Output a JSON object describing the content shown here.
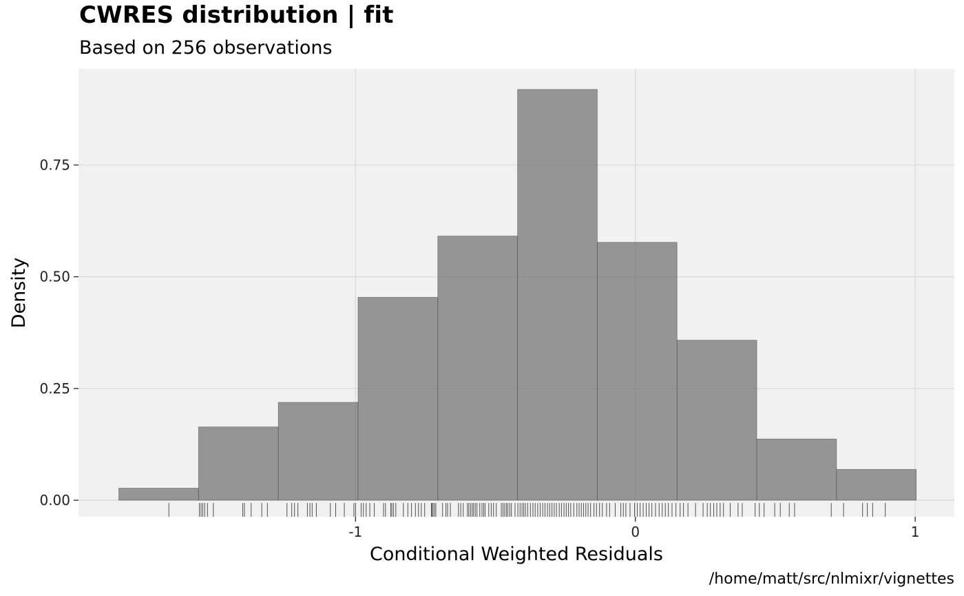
{
  "title": "CWRES distribution | fit",
  "subtitle": "Based on 256 observations",
  "caption": "/home/matt/src/nlmixr/vignettes",
  "chart_data": {
    "type": "bar",
    "subtype": "histogram",
    "xlabel": "Conditional Weighted Residuals",
    "ylabel": "Density",
    "xlim": [
      -1.99,
      1.14
    ],
    "ylim": [
      -0.037,
      0.965
    ],
    "x_ticks": [
      {
        "value": -1,
        "label": "-1"
      },
      {
        "value": 0,
        "label": "0"
      },
      {
        "value": 1,
        "label": "1"
      }
    ],
    "y_ticks": [
      {
        "value": 0.0,
        "label": "0.00"
      },
      {
        "value": 0.25,
        "label": "0.25"
      },
      {
        "value": 0.5,
        "label": "0.50"
      },
      {
        "value": 0.75,
        "label": "0.75"
      }
    ],
    "bins": [
      {
        "x0": -1.846,
        "x1": -1.561,
        "density": 0.027
      },
      {
        "x0": -1.561,
        "x1": -1.276,
        "density": 0.164
      },
      {
        "x0": -1.276,
        "x1": -0.991,
        "density": 0.219
      },
      {
        "x0": -0.991,
        "x1": -0.706,
        "density": 0.454
      },
      {
        "x0": -0.706,
        "x1": -0.421,
        "density": 0.591
      },
      {
        "x0": -0.421,
        "x1": -0.136,
        "density": 0.919
      },
      {
        "x0": -0.136,
        "x1": 0.149,
        "density": 0.577
      },
      {
        "x0": 0.149,
        "x1": 0.434,
        "density": 0.358
      },
      {
        "x0": 0.434,
        "x1": 0.719,
        "density": 0.137
      },
      {
        "x0": 0.719,
        "x1": 1.004,
        "density": 0.069
      }
    ],
    "rug": [
      -1.667,
      -1.558,
      -1.552,
      -1.546,
      -1.539,
      -1.529,
      -1.508,
      -1.403,
      -1.397,
      -1.373,
      -1.335,
      -1.315,
      -1.245,
      -1.228,
      -1.218,
      -1.206,
      -1.172,
      -1.163,
      -1.155,
      -1.14,
      -1.09,
      -1.071,
      -1.04,
      -1.006,
      -1.0,
      -0.98,
      -0.972,
      -0.962,
      -0.949,
      -0.933,
      -0.9,
      -0.893,
      -0.874,
      -0.87,
      -0.864,
      -0.856,
      -0.829,
      -0.813,
      -0.8,
      -0.786,
      -0.775,
      -0.765,
      -0.753,
      -0.729,
      -0.727,
      -0.723,
      -0.718,
      -0.713,
      -0.689,
      -0.677,
      -0.671,
      -0.661,
      -0.632,
      -0.624,
      -0.615,
      -0.6,
      -0.595,
      -0.589,
      -0.583,
      -0.578,
      -0.572,
      -0.566,
      -0.556,
      -0.548,
      -0.542,
      -0.537,
      -0.524,
      -0.515,
      -0.507,
      -0.497,
      -0.479,
      -0.473,
      -0.467,
      -0.461,
      -0.456,
      -0.449,
      -0.443,
      -0.43,
      -0.42,
      -0.412,
      -0.405,
      -0.399,
      -0.393,
      -0.385,
      -0.375,
      -0.366,
      -0.358,
      -0.349,
      -0.34,
      -0.331,
      -0.323,
      -0.314,
      -0.306,
      -0.298,
      -0.29,
      -0.282,
      -0.272,
      -0.264,
      -0.255,
      -0.247,
      -0.239,
      -0.231,
      -0.22,
      -0.209,
      -0.201,
      -0.193,
      -0.185,
      -0.177,
      -0.169,
      -0.16,
      -0.148,
      -0.139,
      -0.128,
      -0.118,
      -0.103,
      -0.092,
      -0.072,
      -0.052,
      -0.043,
      -0.034,
      -0.019,
      -0.003,
      0.007,
      0.017,
      0.028,
      0.039,
      0.049,
      0.059,
      0.072,
      0.085,
      0.096,
      0.107,
      0.118,
      0.131,
      0.145,
      0.16,
      0.172,
      0.188,
      0.215,
      0.242,
      0.257,
      0.268,
      0.28,
      0.291,
      0.303,
      0.315,
      0.339,
      0.367,
      0.382,
      0.428,
      0.443,
      0.46,
      0.498,
      0.518,
      0.55,
      0.569,
      0.7,
      0.744,
      0.812,
      0.829,
      0.848,
      0.893
    ]
  }
}
